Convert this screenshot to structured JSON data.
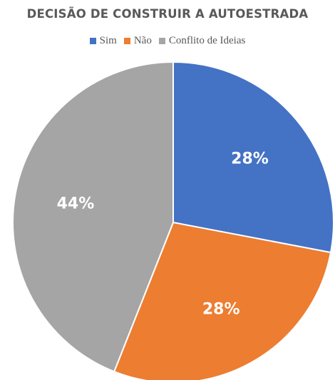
{
  "chart_data": {
    "type": "pie",
    "title": "DECISÃO DE CONSTRUIR A AUTOESTRADA",
    "legend_position": "top",
    "slices": [
      {
        "label": "Sim",
        "value": 28,
        "display": "28%",
        "color": "#4472C4"
      },
      {
        "label": "Não",
        "value": 28,
        "display": "28%",
        "color": "#ED7D31"
      },
      {
        "label": "Conflito de Ideias",
        "value": 44,
        "display": "44%",
        "color": "#A5A5A5"
      }
    ]
  }
}
